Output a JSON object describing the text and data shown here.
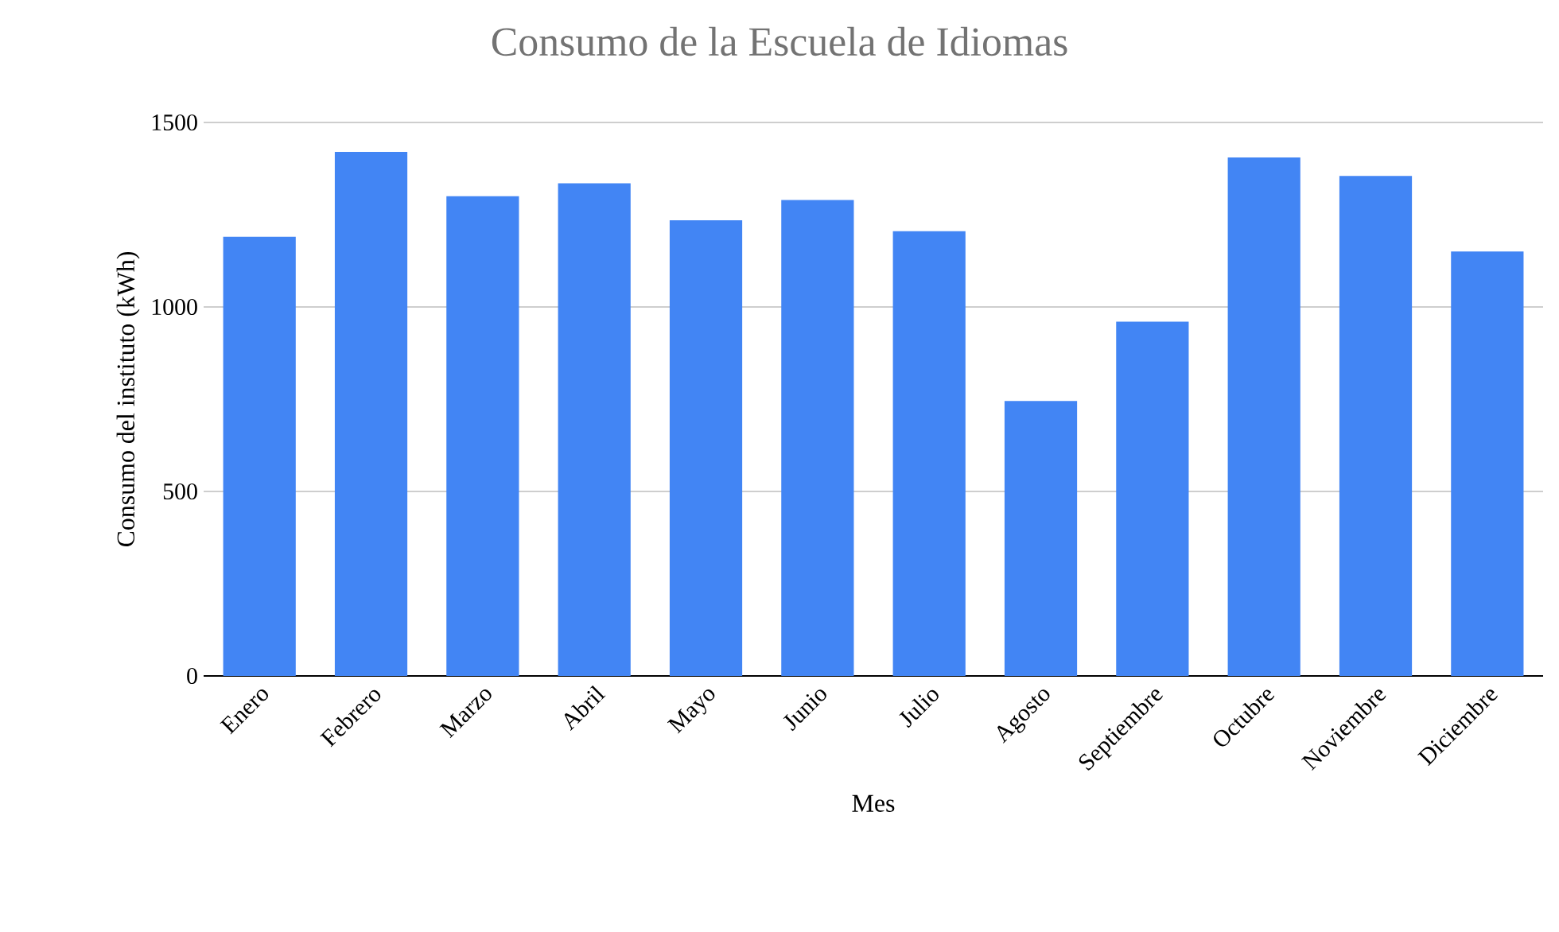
{
  "chart_data": {
    "type": "bar",
    "title": "Consumo de la Escuela de Idiomas",
    "xlabel": "Mes",
    "ylabel": "Consumo del instituto (kWh)",
    "categories": [
      "Enero",
      "Febrero",
      "Marzo",
      "Abril",
      "Mayo",
      "Junio",
      "Julio",
      "Agosto",
      "Septiembre",
      "Octubre",
      "Noviembre",
      "Diciembre"
    ],
    "values": [
      1190,
      1420,
      1300,
      1335,
      1235,
      1290,
      1205,
      745,
      960,
      1405,
      1355,
      1150
    ],
    "color": "#4285f4",
    "ylim": [
      0,
      1500
    ],
    "yticks": [
      0,
      500,
      1000,
      1500
    ],
    "grid": "y"
  }
}
